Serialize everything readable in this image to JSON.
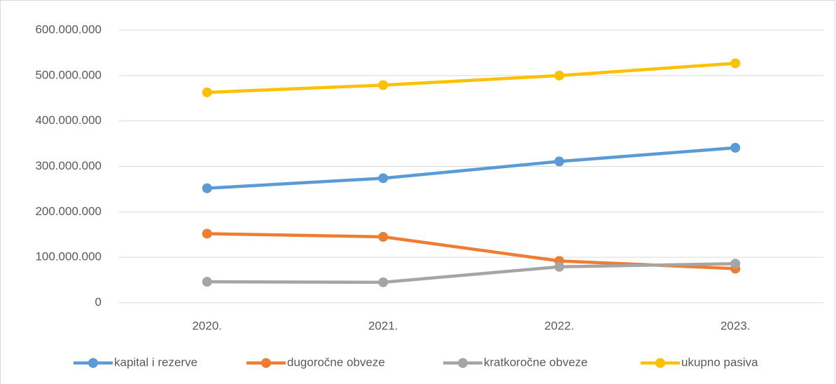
{
  "chart_data": {
    "type": "line",
    "categories": [
      "2020.",
      "2021.",
      "2022.",
      "2023."
    ],
    "series": [
      {
        "name": "kapital i rezerve",
        "color": "#5b9bd5",
        "values": [
          252000000,
          274000000,
          311000000,
          341000000
        ]
      },
      {
        "name": "dugoročne obveze",
        "color": "#ed7d31",
        "values": [
          152000000,
          145000000,
          92000000,
          75000000
        ]
      },
      {
        "name": "kratkoročne obveze",
        "color": "#a5a5a5",
        "values": [
          46000000,
          45000000,
          79000000,
          86000000
        ]
      },
      {
        "name": "ukupno pasiva",
        "color": "#ffc000",
        "values": [
          463000000,
          479000000,
          500000000,
          527000000
        ]
      }
    ],
    "ylim": [
      0,
      600000000
    ],
    "yticks": [
      0,
      {
        "value": 100000000,
        "label": "100.000.000"
      },
      {
        "value": 200000000,
        "label": "200.000.000"
      },
      {
        "value": 300000000,
        "label": "300.000.000"
      },
      {
        "value": 400000000,
        "label": "400.000.000"
      },
      {
        "value": 500000000,
        "label": "500.000.000"
      },
      {
        "value": 600000000,
        "label": "600.000.000"
      }
    ],
    "grid": true,
    "legend": "bottom"
  }
}
